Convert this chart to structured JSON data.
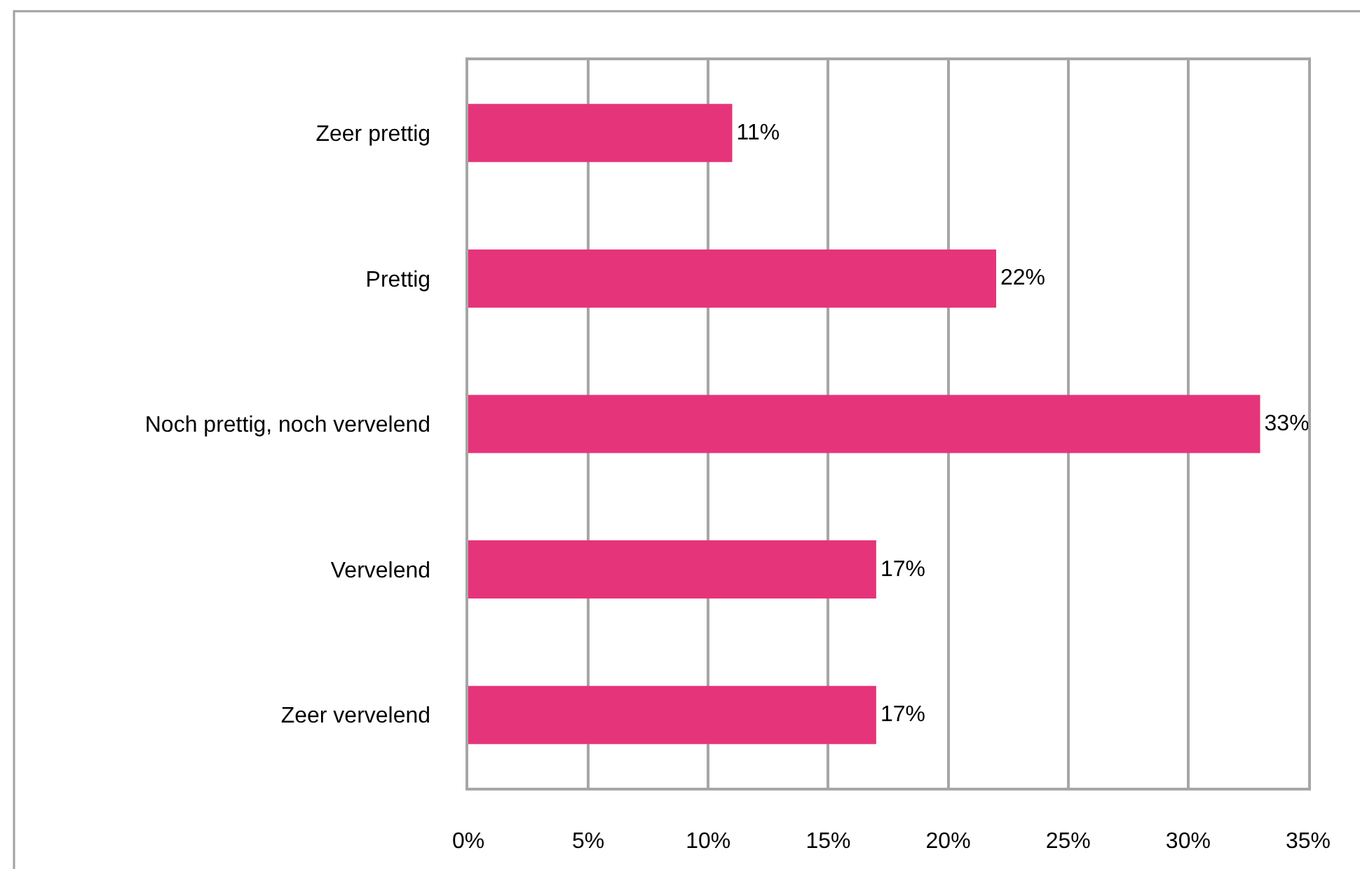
{
  "chart_data": {
    "type": "bar",
    "orientation": "horizontal",
    "categories": [
      "Zeer prettig",
      "Prettig",
      "Noch prettig, noch vervelend",
      "Vervelend",
      "Zeer vervelend"
    ],
    "values": [
      11,
      22,
      33,
      17,
      17
    ],
    "value_labels": [
      "11%",
      "22%",
      "33%",
      "17%",
      "17%"
    ],
    "color": "#e6347a",
    "xlim": [
      0,
      35
    ],
    "xticks": [
      {
        "value": 0,
        "label": "0%"
      },
      {
        "value": 5,
        "label": "5%"
      },
      {
        "value": 10,
        "label": "10%"
      },
      {
        "value": 15,
        "label": "15%"
      },
      {
        "value": 20,
        "label": "20%"
      },
      {
        "value": 25,
        "label": "25%"
      },
      {
        "value": 30,
        "label": "30%"
      },
      {
        "value": 35,
        "label": "35%"
      }
    ],
    "grid": "x"
  }
}
